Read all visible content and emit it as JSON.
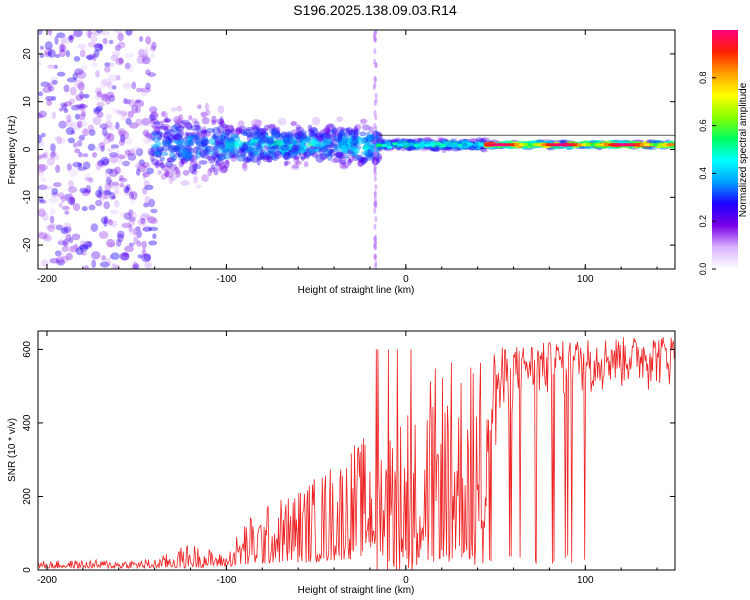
{
  "title": "S196.2025.138.09.03.R14",
  "chart_data": [
    {
      "type": "heatmap",
      "xlabel": "Height of straight line (km)",
      "ylabel": "Frequency (Hz)",
      "xlim": [
        -205,
        150
      ],
      "ylim": [
        -25,
        25
      ],
      "x_ticks": [
        -200,
        -100,
        0,
        100
      ],
      "y_ticks": [
        -20,
        -10,
        0,
        10,
        20
      ],
      "colorbar": {
        "label": "Normalized spectral amplitude",
        "range": [
          0,
          1
        ],
        "ticks": [
          0.0,
          0.2,
          0.4,
          0.6,
          0.8
        ],
        "colors": [
          "#ffffff",
          "#d9b3ff",
          "#7b00e8",
          "#1d00ff",
          "#00a0ff",
          "#00ffff",
          "#00ff60",
          "#8cff00",
          "#ffff00",
          "#ffa000",
          "#ff2000",
          "#ff0080"
        ]
      },
      "line_center_hz": 1.0,
      "regions": [
        {
          "x": [
            -205,
            -140
          ],
          "freq_spread_hz": 25,
          "peak_amplitude": 0.2
        },
        {
          "x": [
            -140,
            -100
          ],
          "freq_spread_hz": 10,
          "peak_amplitude": 0.35
        },
        {
          "x": [
            -100,
            -15
          ],
          "freq_spread_hz": 6,
          "peak_amplitude": 0.45
        },
        {
          "x": [
            -15,
            45
          ],
          "freq_spread_hz": 1.5,
          "peak_amplitude": 0.55
        },
        {
          "x": [
            45,
            150
          ],
          "freq_spread_hz": 0.8,
          "peak_amplitude": 1.0
        }
      ]
    },
    {
      "type": "line",
      "xlabel": "Height of straight line (km)",
      "ylabel": "SNR (10 * v/v)",
      "xlim": [
        -205,
        150
      ],
      "ylim": [
        0,
        650
      ],
      "x_ticks": [
        -200,
        -100,
        0,
        100
      ],
      "y_ticks": [
        0,
        200,
        400,
        600
      ],
      "color": "#ee2222",
      "envelope": [
        {
          "x": -205,
          "min": 5,
          "max": 25
        },
        {
          "x": -140,
          "min": 5,
          "max": 30
        },
        {
          "x": -120,
          "min": 5,
          "max": 75
        },
        {
          "x": -100,
          "min": 10,
          "max": 40
        },
        {
          "x": -90,
          "min": 10,
          "max": 140
        },
        {
          "x": -70,
          "min": 20,
          "max": 200
        },
        {
          "x": -50,
          "min": 20,
          "max": 260
        },
        {
          "x": -30,
          "min": 30,
          "max": 350
        },
        {
          "x": -15,
          "min": 50,
          "max": 380
        },
        {
          "x": -5,
          "min": 0,
          "max": 420
        },
        {
          "x": 0,
          "min": 0,
          "max": 460
        },
        {
          "x": 10,
          "min": 30,
          "max": 520
        },
        {
          "x": 20,
          "min": 30,
          "max": 570
        },
        {
          "x": 40,
          "min": 30,
          "max": 600
        },
        {
          "x": 60,
          "min": 420,
          "max": 610
        },
        {
          "x": 80,
          "min": 440,
          "max": 620
        },
        {
          "x": 100,
          "min": 460,
          "max": 630
        },
        {
          "x": 150,
          "min": 480,
          "max": 640
        }
      ],
      "spike_x": [
        -16,
        -10,
        -5,
        3
      ]
    }
  ]
}
